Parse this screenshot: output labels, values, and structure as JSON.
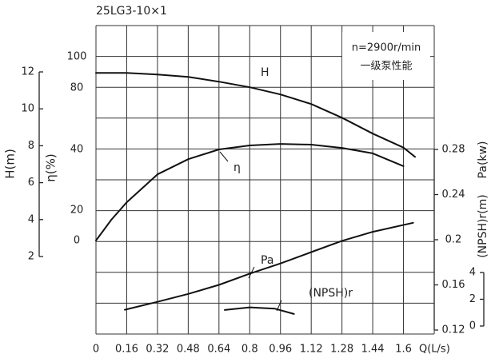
{
  "chart_data": {
    "type": "line",
    "title": "25LG3-10×1",
    "annotations": [
      "n=2900r/min",
      "一级泵性能"
    ],
    "xlabel": "Q(L/s)",
    "xlim": [
      0,
      1.76
    ],
    "xticks": [
      0,
      0.16,
      0.32,
      0.48,
      0.64,
      0.8,
      0.96,
      1.12,
      1.28,
      1.44,
      1.6
    ],
    "ylabel": "H(m)",
    "ylim": [
      2,
      12
    ],
    "yticks": [
      2,
      4,
      6,
      8,
      10,
      12
    ],
    "etalabel": "η(%)",
    "etalim": [
      0,
      100
    ],
    "etaticks": [
      0,
      20,
      40,
      80,
      100
    ],
    "y2label": "Pa(kw)",
    "y2lim": [
      0.12,
      0.28
    ],
    "y2ticks": [
      0.12,
      0.16,
      0.2,
      0.24,
      0.28
    ],
    "y3label": "(NPSH)r(m)",
    "y3lim": [
      0,
      4
    ],
    "y3ticks": [
      0,
      2,
      4
    ],
    "grid": true,
    "series": [
      {
        "name": "H",
        "color": "#111111",
        "axis": "y",
        "x": [
          0,
          0.16,
          0.32,
          0.48,
          0.64,
          0.8,
          0.96,
          1.12,
          1.28,
          1.44,
          1.6,
          1.66
        ],
        "values": [
          11.95,
          11.95,
          11.86,
          11.73,
          11.47,
          11.17,
          10.78,
          10.26,
          9.52,
          8.66,
          7.9,
          7.4
        ]
      },
      {
        "name": "η",
        "color": "#111111",
        "axis": "eta",
        "x": [
          0,
          0.08,
          0.16,
          0.32,
          0.48,
          0.64,
          0.8,
          0.96,
          1.12,
          1.28,
          1.44,
          1.6
        ],
        "values": [
          0,
          13.7,
          22.6,
          31.8,
          36.8,
          40,
          42.6,
          43.6,
          43.1,
          41,
          38.7,
          34.5
        ]
      },
      {
        "name": "Pa",
        "color": "#111111",
        "axis": "y2",
        "x": [
          0.15,
          0.32,
          0.48,
          0.64,
          0.8,
          0.96,
          1.12,
          1.28,
          1.44,
          1.65
        ],
        "values": [
          0.138,
          0.145,
          0.152,
          0.16,
          0.17,
          0.179,
          0.189,
          0.199,
          0.207,
          0.215
        ]
      },
      {
        "name": "(NPSH)r",
        "color": "#111111",
        "axis": "y3",
        "x": [
          0.67,
          0.8,
          0.93,
          1.03
        ],
        "values": [
          1.2,
          1.4,
          1.3,
          0.9
        ]
      }
    ]
  }
}
